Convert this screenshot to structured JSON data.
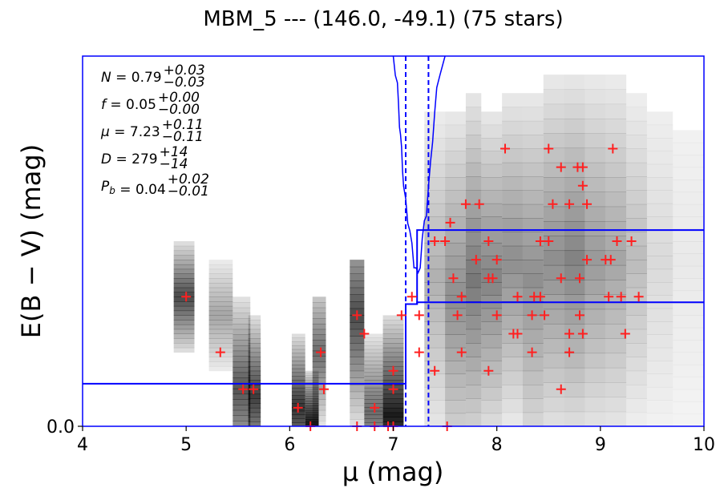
{
  "chart_data": {
    "type": "scatter",
    "title": "MBM_5 --- (146.0, -49.1) (75 stars)",
    "xlabel": "μ (mag)",
    "ylabel": "E(B − V) (mag)",
    "xlim": [
      4,
      10
    ],
    "ylim": [
      0.0,
      1.0
    ],
    "xticks": [
      "4",
      "5",
      "6",
      "7",
      "8",
      "9",
      "10"
    ],
    "yticks": [
      "0.0"
    ],
    "stats": [
      {
        "name": "N",
        "value": "0.79",
        "plus": "+0.03",
        "minus": "−0.03"
      },
      {
        "name": "f",
        "value": "0.05",
        "plus": "+0.00",
        "minus": "−0.00"
      },
      {
        "name": "μ",
        "value": "7.23",
        "plus": "+0.11",
        "minus": "−0.11"
      },
      {
        "name": "D",
        "value": "279",
        "plus": "+14",
        "minus": "−14"
      },
      {
        "name": "P_b",
        "value": "0.04",
        "plus": "+0.02",
        "minus": "−0.01"
      }
    ],
    "distance_lines": [
      7.12,
      7.34
    ],
    "step_model": [
      {
        "x": [
          4.0,
          7.12
        ],
        "y": 0.115
      },
      {
        "x": [
          7.12,
          7.23
        ],
        "y": 0.33
      },
      {
        "x": [
          7.23,
          10.0
        ],
        "y": 0.335
      }
    ],
    "upper_envelope": {
      "x": [
        7.23,
        10.0
      ],
      "y": 0.53
    },
    "stars": [
      [
        5.0,
        0.35
      ],
      [
        5.33,
        0.2
      ],
      [
        5.55,
        0.1
      ],
      [
        5.65,
        0.1
      ],
      [
        6.08,
        0.05
      ],
      [
        6.2,
        0.0
      ],
      [
        6.3,
        0.2
      ],
      [
        6.33,
        0.1
      ],
      [
        6.65,
        0.3
      ],
      [
        6.65,
        0.0
      ],
      [
        6.72,
        0.25
      ],
      [
        6.82,
        0.05
      ],
      [
        6.82,
        0.0
      ],
      [
        6.95,
        0.0
      ],
      [
        7.0,
        0.15
      ],
      [
        7.0,
        0.1
      ],
      [
        7.0,
        0.0
      ],
      [
        7.08,
        0.3
      ],
      [
        7.25,
        0.3
      ],
      [
        7.25,
        0.2
      ],
      [
        7.4,
        0.15
      ],
      [
        7.52,
        0.0
      ],
      [
        7.4,
        0.5
      ],
      [
        7.5,
        0.5
      ],
      [
        7.58,
        0.4
      ],
      [
        7.62,
        0.3
      ],
      [
        7.66,
        0.35
      ],
      [
        7.66,
        0.2
      ],
      [
        7.7,
        0.6
      ],
      [
        7.83,
        0.6
      ],
      [
        7.8,
        0.45
      ],
      [
        7.92,
        0.5
      ],
      [
        7.92,
        0.4
      ],
      [
        7.96,
        0.4
      ],
      [
        8.0,
        0.45
      ],
      [
        8.0,
        0.3
      ],
      [
        7.92,
        0.15
      ],
      [
        8.08,
        0.75
      ],
      [
        8.16,
        0.25
      ],
      [
        8.2,
        0.25
      ],
      [
        8.2,
        0.35
      ],
      [
        8.34,
        0.3
      ],
      [
        8.36,
        0.35
      ],
      [
        8.34,
        0.2
      ],
      [
        8.42,
        0.5
      ],
      [
        8.46,
        0.3
      ],
      [
        8.5,
        0.75
      ],
      [
        8.5,
        0.5
      ],
      [
        8.54,
        0.6
      ],
      [
        8.62,
        0.7
      ],
      [
        8.62,
        0.4
      ],
      [
        8.62,
        0.1
      ],
      [
        8.7,
        0.6
      ],
      [
        8.7,
        0.25
      ],
      [
        8.7,
        0.2
      ],
      [
        8.78,
        0.7
      ],
      [
        8.8,
        0.4
      ],
      [
        8.8,
        0.3
      ],
      [
        8.83,
        0.7
      ],
      [
        8.83,
        0.65
      ],
      [
        8.83,
        0.25
      ],
      [
        8.87,
        0.6
      ],
      [
        8.87,
        0.45
      ],
      [
        9.05,
        0.45
      ],
      [
        9.1,
        0.45
      ],
      [
        9.08,
        0.35
      ],
      [
        9.12,
        0.75
      ],
      [
        9.16,
        0.5
      ],
      [
        9.2,
        0.35
      ],
      [
        9.24,
        0.25
      ],
      [
        9.3,
        0.5
      ],
      [
        9.37,
        0.35
      ],
      [
        7.18,
        0.35
      ],
      [
        8.42,
        0.35
      ],
      [
        7.55,
        0.55
      ]
    ],
    "density_columns": [
      {
        "x": [
          4.88,
          5.08
        ],
        "y": [
          0.2,
          0.5
        ],
        "peak": 0.35,
        "strength": 0.75
      },
      {
        "x": [
          5.22,
          5.45
        ],
        "y": [
          0.15,
          0.45
        ],
        "peak": 0.3,
        "strength": 0.35
      },
      {
        "x": [
          5.45,
          5.62
        ],
        "y": [
          0.0,
          0.35
        ],
        "peak": 0.1,
        "strength": 0.7
      },
      {
        "x": [
          5.6,
          5.72
        ],
        "y": [
          0.0,
          0.3
        ],
        "peak": 0.08,
        "strength": 0.8
      },
      {
        "x": [
          6.02,
          6.15
        ],
        "y": [
          0.0,
          0.25
        ],
        "peak": 0.05,
        "strength": 0.85
      },
      {
        "x": [
          6.15,
          6.28
        ],
        "y": [
          0.0,
          0.15
        ],
        "peak": 0.01,
        "strength": 0.95
      },
      {
        "x": [
          6.22,
          6.35
        ],
        "y": [
          0.0,
          0.35
        ],
        "peak": 0.2,
        "strength": 0.6
      },
      {
        "x": [
          6.58,
          6.72
        ],
        "y": [
          0.0,
          0.45
        ],
        "peak": 0.3,
        "strength": 0.75
      },
      {
        "x": [
          6.72,
          6.9
        ],
        "y": [
          0.0,
          0.25
        ],
        "peak": 0.04,
        "strength": 0.6
      },
      {
        "x": [
          6.9,
          7.1
        ],
        "y": [
          0.0,
          0.3
        ],
        "peak": 0.03,
        "strength": 0.95
      },
      {
        "x": [
          7.3,
          7.5
        ],
        "y": [
          0.0,
          0.85
        ],
        "peak": 0.4,
        "strength": 0.3
      },
      {
        "x": [
          7.5,
          7.7
        ],
        "y": [
          0.0,
          0.85
        ],
        "peak": 0.35,
        "strength": 0.45
      },
      {
        "x": [
          7.7,
          7.85
        ],
        "y": [
          0.0,
          0.9
        ],
        "peak": 0.4,
        "strength": 0.55
      },
      {
        "x": [
          7.85,
          8.05
        ],
        "y": [
          0.0,
          0.85
        ],
        "peak": 0.4,
        "strength": 0.5
      },
      {
        "x": [
          8.05,
          8.25
        ],
        "y": [
          0.0,
          0.9
        ],
        "peak": 0.45,
        "strength": 0.45
      },
      {
        "x": [
          8.25,
          8.45
        ],
        "y": [
          0.0,
          0.9
        ],
        "peak": 0.4,
        "strength": 0.45
      },
      {
        "x": [
          8.45,
          8.65
        ],
        "y": [
          0.0,
          0.95
        ],
        "peak": 0.45,
        "strength": 0.45
      },
      {
        "x": [
          8.65,
          8.85
        ],
        "y": [
          0.0,
          0.95
        ],
        "peak": 0.45,
        "strength": 0.5
      },
      {
        "x": [
          8.85,
          9.05
        ],
        "y": [
          0.0,
          0.95
        ],
        "peak": 0.45,
        "strength": 0.4
      },
      {
        "x": [
          9.05,
          9.25
        ],
        "y": [
          0.0,
          0.95
        ],
        "peak": 0.45,
        "strength": 0.35
      },
      {
        "x": [
          9.25,
          9.45
        ],
        "y": [
          0.0,
          0.9
        ],
        "peak": 0.45,
        "strength": 0.25
      },
      {
        "x": [
          9.45,
          9.7
        ],
        "y": [
          0.0,
          0.85
        ],
        "peak": 0.45,
        "strength": 0.12
      },
      {
        "x": [
          9.7,
          10.0
        ],
        "y": [
          0.0,
          0.8
        ],
        "peak": 0.45,
        "strength": 0.05
      }
    ],
    "likelihood_curve": [
      [
        7.0,
        1.0
      ],
      [
        7.02,
        0.96
      ],
      [
        7.04,
        0.92
      ],
      [
        7.05,
        0.86
      ],
      [
        7.06,
        0.82
      ],
      [
        7.07,
        0.78
      ],
      [
        7.08,
        0.74
      ],
      [
        7.09,
        0.7
      ],
      [
        7.1,
        0.64
      ],
      [
        7.12,
        0.6
      ],
      [
        7.14,
        0.56
      ],
      [
        7.16,
        0.52
      ],
      [
        7.18,
        0.48
      ],
      [
        7.2,
        0.44
      ],
      [
        7.22,
        0.42
      ],
      [
        7.24,
        0.4
      ],
      [
        7.26,
        0.44
      ],
      [
        7.28,
        0.5
      ],
      [
        7.3,
        0.54
      ],
      [
        7.32,
        0.58
      ],
      [
        7.34,
        0.64
      ],
      [
        7.36,
        0.7
      ],
      [
        7.38,
        0.78
      ],
      [
        7.4,
        0.84
      ],
      [
        7.42,
        0.9
      ],
      [
        7.45,
        0.96
      ],
      [
        7.5,
        1.0
      ]
    ],
    "colors": {
      "axis": "#0000ff",
      "stars": "#ff2020",
      "density": "#000000"
    }
  }
}
